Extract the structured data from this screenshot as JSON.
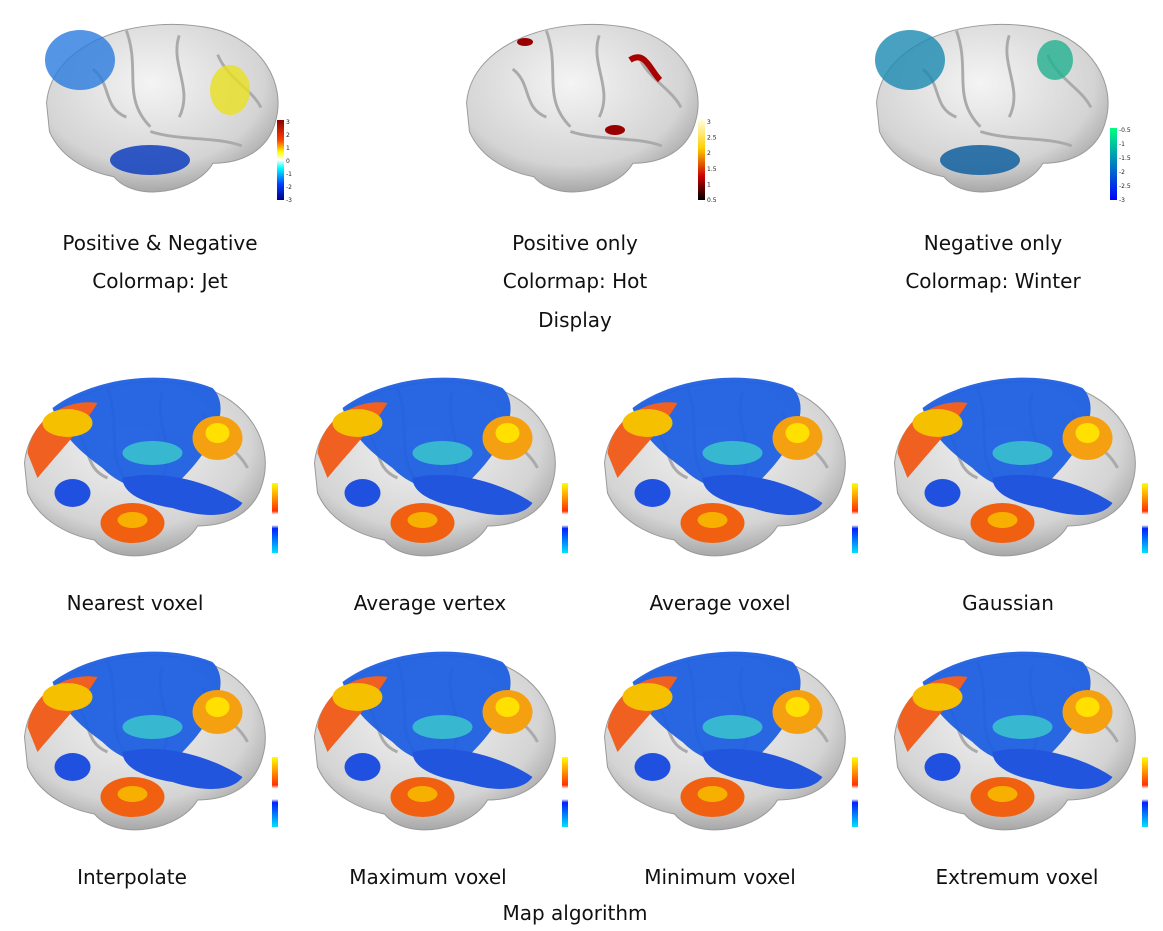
{
  "top": {
    "panels": [
      {
        "line1": "Positive & Negative",
        "line2": "Colormap: Jet",
        "colorbar_labels": [
          "3",
          "2",
          "1",
          "0",
          "-1",
          "-2",
          "-3"
        ]
      },
      {
        "line1": "Positive only",
        "line2": "Colormap: Hot",
        "colorbar_labels": [
          "3",
          "2.5",
          "2",
          "1.5",
          "1",
          "0.5"
        ]
      },
      {
        "line1": "Negative only",
        "line2": "Colormap: Winter",
        "colorbar_labels": [
          "-0.5",
          "-1",
          "-1.5",
          "-2",
          "-2.5",
          "-3"
        ]
      }
    ],
    "section_label": "Display"
  },
  "bottom": {
    "row1": [
      "Nearest voxel",
      "Average vertex",
      "Average voxel",
      "Gaussian"
    ],
    "row2": [
      "Interpolate",
      "Maximum voxel",
      "Minimum voxel",
      "Extremum voxel"
    ],
    "section_label": "Map algorithm"
  }
}
